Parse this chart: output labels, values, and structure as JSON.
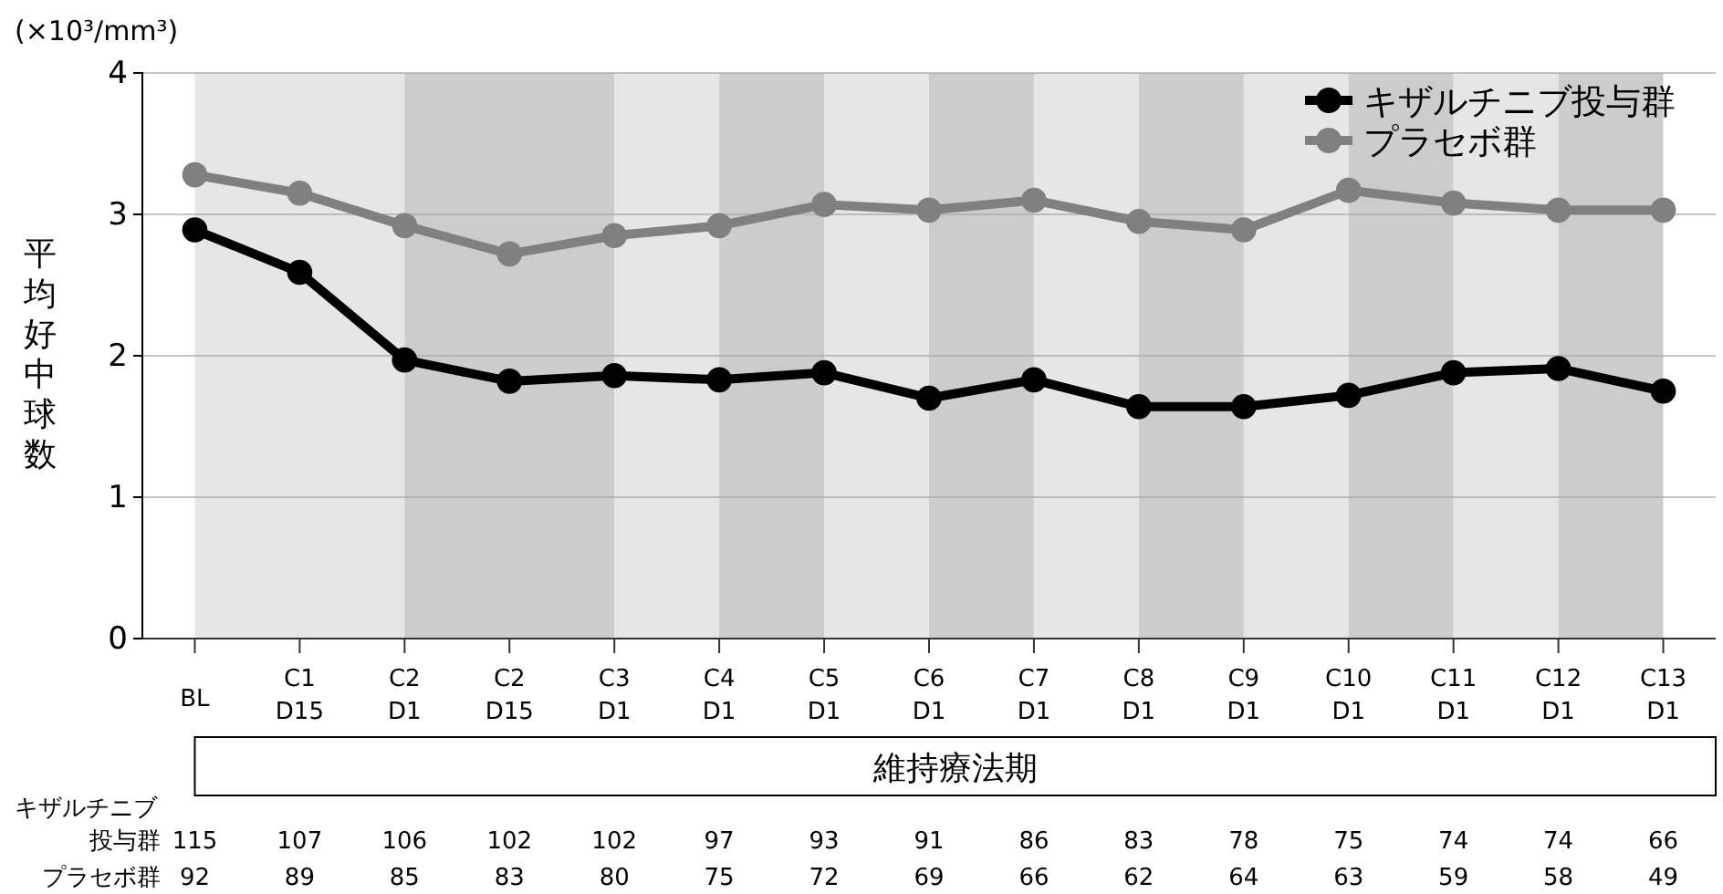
{
  "chart_data": {
    "type": "line",
    "ylabel": "平均好中球数",
    "categories": [
      "BL",
      "C1 D15",
      "C2 D1",
      "C2 D15",
      "C3 D1",
      "C4 D1",
      "C5 D1",
      "C6 D1",
      "C7 D1",
      "C8 D1",
      "C9 D1",
      "C10 D1",
      "C11 D1",
      "C12 D1",
      "C13 D1"
    ],
    "ylim": [
      0,
      4
    ],
    "yticks": [
      0,
      1,
      2,
      3,
      4
    ],
    "series": [
      {
        "name": "キザルチニブ投与群",
        "color": "#000000",
        "values": [
          2.89,
          2.59,
          1.97,
          1.82,
          1.86,
          1.83,
          1.88,
          1.7,
          1.83,
          1.64,
          1.64,
          1.72,
          1.88,
          1.91,
          1.75
        ]
      },
      {
        "name": "プラセボ群",
        "color": "#808080",
        "values": [
          3.28,
          3.15,
          2.92,
          2.72,
          2.85,
          2.92,
          3.07,
          3.03,
          3.1,
          2.95,
          2.89,
          3.17,
          3.08,
          3.03,
          3.03
        ]
      }
    ],
    "bands": [
      {
        "axis": "x",
        "from": "BL",
        "to": "C2 D1",
        "color": "#e6e6e6"
      },
      {
        "axis": "x",
        "from": "C2 D1",
        "to": "C3 D1",
        "color": "#cccccc"
      },
      {
        "axis": "x",
        "from": "C3 D1",
        "to": "C4 D1",
        "color": "#e6e6e6"
      },
      {
        "axis": "x",
        "from": "C4 D1",
        "to": "C5 D1",
        "color": "#cccccc"
      },
      {
        "axis": "x",
        "from": "C5 D1",
        "to": "C6 D1",
        "color": "#e6e6e6"
      },
      {
        "axis": "x",
        "from": "C6 D1",
        "to": "C7 D1",
        "color": "#cccccc"
      },
      {
        "axis": "x",
        "from": "C7 D1",
        "to": "C8 D1",
        "color": "#e6e6e6"
      },
      {
        "axis": "x",
        "from": "C8 D1",
        "to": "C9 D1",
        "color": "#cccccc"
      },
      {
        "axis": "x",
        "from": "C9 D1",
        "to": "C10 D1",
        "color": "#e6e6e6"
      },
      {
        "axis": "x",
        "from": "C10 D1",
        "to": "C11 D1",
        "color": "#cccccc"
      },
      {
        "axis": "x",
        "from": "C11 D1",
        "to": "C12 D1",
        "color": "#e6e6e6"
      },
      {
        "axis": "x",
        "from": "C12 D1",
        "to": "C13 D1",
        "color": "#cccccc"
      }
    ],
    "annotations": [
      "(×10³/mm³)",
      "維持療法期",
      "キザルチニブ",
      "投与群",
      "プラセボ群",
      "115",
      "107",
      "106",
      "102",
      "102",
      "97",
      "93",
      "91",
      "86",
      "83",
      "78",
      "75",
      "74",
      "74",
      "66",
      "92",
      "89",
      "85",
      "83",
      "80",
      "75",
      "72",
      "69",
      "66",
      "62",
      "64",
      "63",
      "59",
      "58",
      "49"
    ],
    "grid": "y",
    "legend": "top right",
    "marker": "circle",
    "line_style": "solid"
  }
}
